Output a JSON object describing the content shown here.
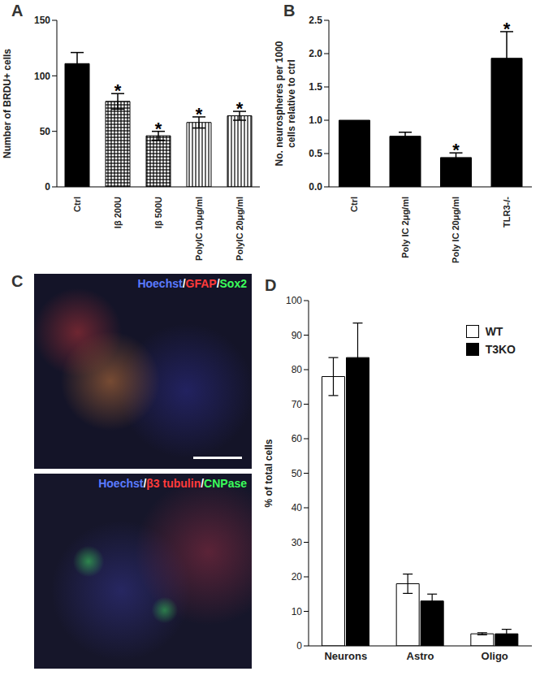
{
  "chart_data": [
    {
      "type": "bar",
      "title": "A",
      "ylabel": "Number of BRDU+ cells",
      "categories": [
        "Ctrl",
        "Iβ 200U",
        "Iβ 500U",
        "PolyIC 10μg/ml",
        "PolyIC 20μg/ml"
      ],
      "values": [
        111,
        77,
        46,
        58,
        64
      ],
      "errors": [
        10,
        7,
        4,
        5,
        4
      ],
      "colors": [
        "#000000",
        "#000000",
        "#000000",
        "#000000",
        "#000000"
      ],
      "ylim": [
        0,
        150
      ],
      "yticks": [
        0,
        50,
        100,
        150
      ],
      "grid": false,
      "annotations": [
        {
          "category": "Iβ 200U",
          "text": "*"
        },
        {
          "category": "Iβ 500U",
          "text": "*"
        },
        {
          "category": "PolyIC 10μg/ml",
          "text": "*"
        },
        {
          "category": "PolyIC 20μg/ml",
          "text": "*"
        }
      ]
    },
    {
      "type": "bar",
      "title": "B",
      "ylabel": "No. neurospheres per 1000 cells relative to ctrl",
      "categories": [
        "Ctrl",
        "Poly IC 2μg/ml",
        "Poly IC 20μg/ml",
        "TLR3-/-"
      ],
      "values": [
        1.0,
        0.76,
        0.44,
        1.93
      ],
      "errors": [
        0,
        0.06,
        0.07,
        0.4
      ],
      "color": "#000000",
      "ylim": [
        0,
        2.5
      ],
      "yticks": [
        {
          "value": 0,
          "label": "0.0"
        },
        {
          "value": 0.5,
          "label": "0.5"
        },
        {
          "value": 1,
          "label": "1.0"
        },
        {
          "value": 1.5,
          "label": "1.5"
        },
        {
          "value": 2,
          "label": "2.0"
        },
        {
          "value": 2.5,
          "label": "2.5"
        }
      ],
      "grid": false,
      "annotations": [
        {
          "category": "Poly IC 20μg/ml",
          "text": "*"
        },
        {
          "category": "TLR3-/-",
          "text": "*"
        }
      ]
    },
    {
      "type": "image",
      "title": "C",
      "annotations": [
        "Hoechst/GFAP/Sox2",
        "Hoechst/β3 tubulin/CNPase"
      ]
    },
    {
      "type": "bar",
      "title": "D",
      "ylabel": "% of total cells",
      "categories": [
        "Neurons",
        "Astro",
        "Oligo"
      ],
      "series": [
        {
          "name": "WT",
          "color": "#ffffff",
          "values": [
            78,
            18,
            3.5
          ],
          "errors": [
            5.5,
            2.8,
            0.3
          ]
        },
        {
          "name": "T3KO",
          "color": "#000000",
          "values": [
            83.5,
            13,
            3.5
          ],
          "errors": [
            10,
            2,
            1.3
          ]
        }
      ],
      "ylim": [
        0,
        100
      ],
      "yticks": [
        0,
        10,
        20,
        30,
        40,
        50,
        60,
        70,
        80,
        90,
        100
      ],
      "grid": false,
      "legend": "upper right"
    }
  ]
}
